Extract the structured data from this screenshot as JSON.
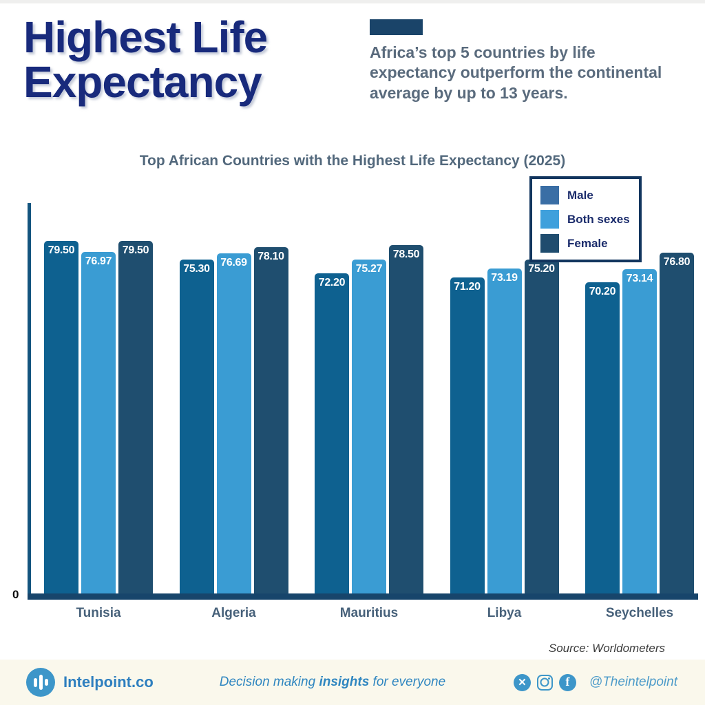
{
  "header": {
    "title_line1": "Highest Life",
    "title_line2": "Expectancy",
    "subtitle": "Africa’s top 5 countries by life expectancy outperform the continental average by up to 13 years."
  },
  "chart_data": {
    "type": "bar",
    "title": "Top African Countries with the Highest Life Expectancy (2025)",
    "categories": [
      "Tunisia",
      "Algeria",
      "Mauritius",
      "Libya",
      "Seychelles"
    ],
    "series": [
      {
        "name": "Male",
        "color": "#0E6190",
        "legend_color": "#3A6EA5",
        "values": [
          79.5,
          75.3,
          72.2,
          71.2,
          70.2
        ]
      },
      {
        "name": "Both sexes",
        "color": "#3A9CD3",
        "legend_color": "#3FA0DC",
        "values": [
          76.97,
          76.69,
          75.27,
          73.19,
          73.14
        ]
      },
      {
        "name": "Female",
        "color": "#1F4E6F",
        "legend_color": "#1F4C6E",
        "values": [
          79.5,
          78.1,
          78.5,
          75.2,
          76.8
        ]
      }
    ],
    "value_label_decimals": 2,
    "ylim": [
      0,
      88
    ],
    "y_zero_label": "0",
    "legend_position": "top-right",
    "grid": false,
    "source": "Source: Worldometers"
  },
  "footer": {
    "brand": "Intelpoint.co",
    "tagline_prefix": "Decision making ",
    "tagline_bold": "insights",
    "tagline_suffix": " for everyone",
    "handle": "@Theintelpoint",
    "x_glyph": "✕",
    "fb_glyph": "f"
  },
  "colors": {
    "title_navy": "#182A7C",
    "accent_navy": "#1A4469",
    "subtitle_gray": "#5A6B7D",
    "axis_blue": "#14557F",
    "baseline_navy": "#17456B",
    "footer_bg": "#FAF8EC",
    "footer_blue": "#2E7FBF"
  }
}
